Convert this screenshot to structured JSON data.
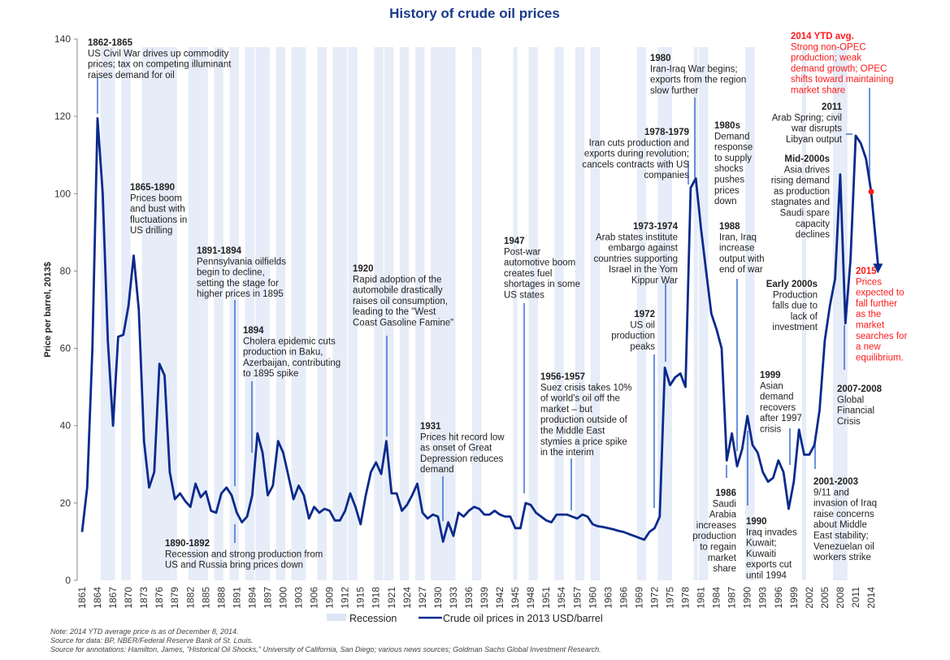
{
  "chart_data": {
    "type": "line",
    "title": "History of crude oil prices",
    "xlabel": "",
    "ylabel": "Price per barrel, 2013$",
    "ylim": [
      0,
      140
    ],
    "xlim": [
      1861,
      2014
    ],
    "yticks": [
      0,
      20,
      40,
      60,
      80,
      100,
      120,
      140
    ],
    "xticks": [
      1861,
      1864,
      1867,
      1870,
      1873,
      1876,
      1879,
      1882,
      1885,
      1888,
      1891,
      1894,
      1897,
      1900,
      1903,
      1906,
      1909,
      1912,
      1915,
      1918,
      1921,
      1924,
      1927,
      1930,
      1933,
      1936,
      1939,
      1942,
      1945,
      1948,
      1951,
      1954,
      1957,
      1960,
      1963,
      1966,
      1969,
      1972,
      1975,
      1978,
      1981,
      1984,
      1987,
      1990,
      1993,
      1996,
      1999,
      2002,
      2005,
      2008,
      2011,
      2014
    ],
    "grid": false,
    "legend": "bottom",
    "series": [
      {
        "name": "Crude oil prices in 2013 USD/barrel",
        "color": "#0a2a8c",
        "x": [
          1861,
          1862,
          1863,
          1864,
          1865,
          1866,
          1867,
          1868,
          1869,
          1870,
          1871,
          1872,
          1873,
          1874,
          1875,
          1876,
          1877,
          1878,
          1879,
          1880,
          1881,
          1882,
          1883,
          1884,
          1885,
          1886,
          1887,
          1888,
          1889,
          1890,
          1891,
          1892,
          1893,
          1894,
          1895,
          1896,
          1897,
          1898,
          1899,
          1900,
          1901,
          1902,
          1903,
          1904,
          1905,
          1906,
          1907,
          1908,
          1909,
          1910,
          1911,
          1912,
          1913,
          1914,
          1915,
          1916,
          1917,
          1918,
          1919,
          1920,
          1921,
          1922,
          1923,
          1924,
          1925,
          1926,
          1927,
          1928,
          1929,
          1930,
          1931,
          1932,
          1933,
          1934,
          1935,
          1936,
          1937,
          1938,
          1939,
          1940,
          1941,
          1942,
          1943,
          1944,
          1945,
          1946,
          1947,
          1948,
          1949,
          1950,
          1951,
          1952,
          1953,
          1954,
          1955,
          1956,
          1957,
          1958,
          1959,
          1960,
          1961,
          1962,
          1963,
          1964,
          1965,
          1966,
          1967,
          1968,
          1969,
          1970,
          1971,
          1972,
          1973,
          1974,
          1975,
          1976,
          1977,
          1978,
          1979,
          1980,
          1981,
          1982,
          1983,
          1984,
          1985,
          1986,
          1987,
          1988,
          1989,
          1990,
          1991,
          1992,
          1993,
          1994,
          1995,
          1996,
          1997,
          1998,
          1999,
          2000,
          2001,
          2002,
          2003,
          2004,
          2005,
          2006,
          2007,
          2008,
          2009,
          2010,
          2011,
          2012,
          2013,
          2014
        ],
        "values": [
          12.5,
          24,
          60,
          119.5,
          100,
          62,
          40,
          63,
          63.5,
          71,
          84,
          70,
          36,
          24,
          28,
          56,
          53,
          28,
          21,
          22.5,
          20.5,
          19,
          25,
          21.5,
          23,
          18,
          17.5,
          22.5,
          24,
          22,
          17.5,
          15,
          16.5,
          22,
          38,
          33,
          22,
          24.5,
          36,
          33,
          27,
          21,
          24.5,
          22,
          16,
          19,
          17.5,
          18.5,
          18,
          15.5,
          15.5,
          18,
          22.5,
          19,
          14.5,
          22,
          28,
          30.5,
          27.5,
          36,
          22.5,
          22.5,
          18,
          19.5,
          22,
          25,
          17.5,
          16,
          17,
          16.5,
          10,
          15,
          11.5,
          17.5,
          16.5,
          18,
          19,
          18.5,
          17,
          17,
          18,
          17,
          16.5,
          16.5,
          13.5,
          13.5,
          20,
          19.5,
          17.5,
          16.5,
          15.5,
          15,
          17,
          17,
          17,
          16.5,
          16,
          17,
          16.5,
          14.5,
          14,
          13.8,
          13.5,
          13.2,
          12.8,
          12.5,
          12,
          11.5,
          11,
          10.5,
          12.5,
          13.5,
          16.5,
          55,
          50.5,
          52.5,
          53.5,
          50,
          101.5,
          104,
          91,
          80,
          69,
          65,
          60,
          31,
          38,
          29.5,
          34,
          42.5,
          35,
          33,
          28,
          25.5,
          26.5,
          31,
          28,
          18.5,
          25.5,
          39,
          32.5,
          32.5,
          35,
          44,
          62,
          71,
          78,
          105,
          66.5,
          83,
          115,
          113,
          109,
          100.5
        ]
      }
    ],
    "forecast_arrow": {
      "from_year": 2014,
      "from_value": 100.5,
      "to_year": 2015,
      "to_value": 80
    },
    "highlight_point": {
      "year": 2014,
      "value": 100.5,
      "color": "#ff1a1a"
    },
    "recessions": [
      [
        1865,
        1867
      ],
      [
        1869,
        1870
      ],
      [
        1873,
        1879
      ],
      [
        1882,
        1885
      ],
      [
        1887,
        1888
      ],
      [
        1890,
        1891
      ],
      [
        1893,
        1894
      ],
      [
        1895,
        1897
      ],
      [
        1899,
        1900
      ],
      [
        1902,
        1904
      ],
      [
        1907,
        1908
      ],
      [
        1910,
        1912
      ],
      [
        1913,
        1914
      ],
      [
        1918,
        1919
      ],
      [
        1920,
        1921
      ],
      [
        1923,
        1924
      ],
      [
        1926,
        1927
      ],
      [
        1929,
        1933
      ],
      [
        1937,
        1938
      ],
      [
        1945,
        1945
      ],
      [
        1948,
        1949
      ],
      [
        1953,
        1954
      ],
      [
        1957,
        1958
      ],
      [
        1960,
        1961
      ],
      [
        1969,
        1970
      ],
      [
        1973,
        1975
      ],
      [
        1980,
        1980
      ],
      [
        1981,
        1982
      ],
      [
        1990,
        1991
      ],
      [
        2001,
        2001
      ],
      [
        2007,
        2009
      ]
    ],
    "recession_color": "#dde6f5",
    "annotations": [
      {
        "heading": "1862-1865",
        "lines": [
          "US Civil War drives up commodity",
          "prices; tax on competing illuminant",
          "raises demand for oil"
        ],
        "year": 1864,
        "value": 119.5,
        "red": false
      },
      {
        "heading": "1865-1890",
        "lines": [
          "Prices boom",
          "and bust with",
          "fluctuations in",
          "US drilling"
        ],
        "red": false
      },
      {
        "heading": "1891-1894",
        "lines": [
          "Pennsylvania oilfields",
          "begin to decline,",
          "setting the stage for",
          "higher prices in 1895"
        ],
        "year": 1891,
        "value": 22,
        "red": false
      },
      {
        "heading": "1894",
        "lines": [
          "Cholera epidemic cuts",
          "production in Baku,",
          "Azerbaijan, contributing",
          "to 1895 spike"
        ],
        "year": 1894,
        "value": 38,
        "red": false
      },
      {
        "heading": "1890-1892",
        "lines": [
          "Recession and strong production from",
          "US and Russia bring prices down"
        ],
        "year": 1891,
        "value": 17.5,
        "red": false
      },
      {
        "heading": "1920",
        "lines": [
          "Rapid adoption of the",
          "automobile drastically",
          "raises oil consumption,",
          "leading to the \"West",
          "Coast Gasoline Famine\""
        ],
        "year": 1920,
        "value": 36,
        "red": false
      },
      {
        "heading": "1931",
        "lines": [
          "Prices hit record low",
          "as onset of Great",
          "Depression reduces",
          "demand"
        ],
        "year": 1931,
        "value": 10,
        "red": false
      },
      {
        "heading": "1947",
        "lines": [
          "Post-war",
          "automotive boom",
          "creates fuel",
          "shortages in some",
          "US states"
        ],
        "year": 1947,
        "value": 20,
        "red": false
      },
      {
        "heading": "1956-1957",
        "lines": [
          "Suez crisis takes 10%",
          "of world's oil off the",
          "market – but",
          "production outside of",
          "the Middle East",
          "stymies a price spike",
          "in the interim"
        ],
        "year": 1956,
        "value": 16.5,
        "red": false
      },
      {
        "heading": "1972",
        "lines": [
          "US oil",
          "production",
          "peaks"
        ],
        "year": 1972,
        "value": 13.5,
        "red": false
      },
      {
        "heading": "1973-1974",
        "lines": [
          "Arab states institute",
          "embargo against",
          "countries supporting",
          "Israel in the Yom",
          "Kippur War"
        ],
        "year": 1974,
        "value": 55,
        "red": false
      },
      {
        "heading": "1978-1979",
        "lines": [
          "Iran cuts production and",
          "exports during revolution;",
          "cancels contracts with US",
          "companies"
        ],
        "year": 1979,
        "value": 101.5,
        "red": false
      },
      {
        "heading": "1980",
        "lines": [
          "Iran-Iraq War begins;",
          "exports from the region",
          "slow further"
        ],
        "year": 1980,
        "value": 104,
        "red": false
      },
      {
        "heading": "1980s",
        "lines": [
          "Demand",
          "response",
          "to supply",
          "shocks",
          "pushes",
          "prices",
          "down"
        ],
        "red": false
      },
      {
        "heading": "1988",
        "lines": [
          "Iran, Iraq",
          "increase",
          "output with",
          "end of war"
        ],
        "year": 1988,
        "value": 29.5,
        "red": false
      },
      {
        "heading": "1986",
        "lines": [
          "Saudi",
          "Arabia",
          "increases",
          "production",
          "to regain",
          "market",
          "share"
        ],
        "year": 1986,
        "value": 31,
        "red": false
      },
      {
        "heading": "1990",
        "lines": [
          "Iraq invades",
          "Kuwait;",
          "Kuwaiti",
          "exports cut",
          "until 1994"
        ],
        "year": 1990,
        "value": 42.5,
        "red": false
      },
      {
        "heading": "1999",
        "lines": [
          "Asian",
          "demand",
          "recovers",
          "after 1997",
          "crisis"
        ],
        "year": 1999,
        "value": 25.5,
        "red": false
      },
      {
        "heading": "Early 2000s",
        "lines": [
          "Production",
          "falls due to",
          "lack of",
          "investment"
        ],
        "red": false
      },
      {
        "heading": "2001-2003",
        "lines": [
          "9/11 and",
          "invasion of Iraq",
          "raise concerns",
          "about Middle",
          "East stability;",
          "Venezuelan oil",
          "workers strike"
        ],
        "year": 2002,
        "value": 32.5,
        "red": false
      },
      {
        "heading": "Mid-2000s",
        "lines": [
          "Asia drives",
          "rising demand",
          "as production",
          "stagnates and",
          "Saudi spare",
          "capacity",
          "declines"
        ],
        "red": false
      },
      {
        "heading": "2007-2008",
        "lines": [
          "Global",
          "Financial",
          "Crisis"
        ],
        "year": 2009,
        "value": 66.5,
        "red": false
      },
      {
        "heading": "2011",
        "lines": [
          "Arab Spring; civil",
          "war disrupts",
          "Libyan output"
        ],
        "year": 2011,
        "value": 115,
        "red": false
      },
      {
        "heading": "2014 YTD avg.",
        "lines": [
          "Strong non-OPEC",
          "production; weak",
          "demand growth; OPEC",
          "shifts toward maintaining",
          "market share"
        ],
        "year": 2014,
        "value": 100.5,
        "red": true
      },
      {
        "heading": "2015",
        "lines": [
          "Prices",
          "expected to",
          "fall further",
          "as the",
          "market",
          "searches for",
          "a new",
          "equilibrium."
        ],
        "red": true
      }
    ],
    "legend_entries": [
      {
        "label": "Recession",
        "kind": "band"
      },
      {
        "label": "Crude oil prices in 2013 USD/barrel",
        "kind": "line"
      }
    ],
    "notes": [
      "Note: 2014 YTD average price is as of December 8, 2014.",
      "Source for data: BP, NBER/Federal Reserve Bank of St. Louis.",
      "Source for annotations: Hamilton, James, \"Historical Oil Shocks,\" University of California, San Diego; various news sources; Goldman Sachs Global Investment Research."
    ]
  }
}
